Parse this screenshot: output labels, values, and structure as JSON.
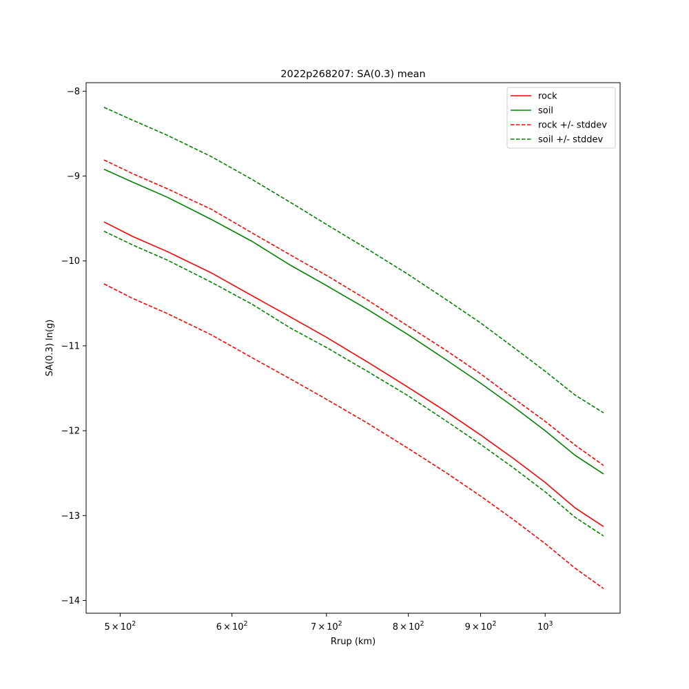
{
  "chart_data": {
    "type": "line",
    "title": "2022p268207: SA(0.3) mean",
    "xlabel": "Rrup (km)",
    "ylabel": "SA(0.3) ln(g)",
    "xscale": "log",
    "xlim": [
      473,
      1130
    ],
    "ylim": [
      -14.15,
      -7.9
    ],
    "grid": false,
    "legend_position": "top-right",
    "x_ticks": [
      {
        "value": 500,
        "mantissa": "5",
        "base": "10",
        "exp": "2"
      },
      {
        "value": 600,
        "mantissa": "6",
        "base": "10",
        "exp": "2"
      },
      {
        "value": 700,
        "mantissa": "7",
        "base": "10",
        "exp": "2"
      },
      {
        "value": 800,
        "mantissa": "8",
        "base": "10",
        "exp": "2"
      },
      {
        "value": 900,
        "mantissa": "9",
        "base": "10",
        "exp": "2"
      },
      {
        "value": 1000,
        "mantissa": "",
        "base": "10",
        "exp": "3"
      }
    ],
    "y_ticks": [
      {
        "value": -8,
        "label": "−8"
      },
      {
        "value": -9,
        "label": "−9"
      },
      {
        "value": -10,
        "label": "−10"
      },
      {
        "value": -11,
        "label": "−11"
      },
      {
        "value": -12,
        "label": "−12"
      },
      {
        "value": -13,
        "label": "−13"
      },
      {
        "value": -14,
        "label": "−14"
      }
    ],
    "x": [
      487,
      510,
      540,
      580,
      620,
      660,
      700,
      750,
      800,
      850,
      900,
      950,
      1000,
      1050,
      1100
    ],
    "series": [
      {
        "name": "rock",
        "color": "#ff0000",
        "dash": "solid",
        "values": [
          -9.54,
          -9.71,
          -9.89,
          -10.14,
          -10.41,
          -10.66,
          -10.9,
          -11.2,
          -11.49,
          -11.77,
          -12.05,
          -12.33,
          -12.61,
          -12.91,
          -13.13
        ]
      },
      {
        "name": "soil",
        "color": "#008000",
        "dash": "solid",
        "values": [
          -8.92,
          -9.07,
          -9.25,
          -9.51,
          -9.77,
          -10.05,
          -10.29,
          -10.58,
          -10.87,
          -11.16,
          -11.44,
          -11.72,
          -12.0,
          -12.29,
          -12.51
        ]
      },
      {
        "name": "rock +/- stddev",
        "color": "#ff0000",
        "dash": "dashed",
        "values": [
          -8.81,
          -8.97,
          -9.15,
          -9.39,
          -9.67,
          -9.93,
          -10.17,
          -10.47,
          -10.77,
          -11.05,
          -11.33,
          -11.62,
          -11.89,
          -12.17,
          -12.41
        ]
      },
      {
        "name": "",
        "color": "#ff0000",
        "dash": "dashed",
        "values": [
          -10.27,
          -10.44,
          -10.62,
          -10.87,
          -11.14,
          -11.39,
          -11.63,
          -11.92,
          -12.21,
          -12.49,
          -12.77,
          -13.05,
          -13.33,
          -13.62,
          -13.86
        ]
      },
      {
        "name": "soil +/- stddev",
        "color": "#008000",
        "dash": "dashed",
        "values": [
          -8.19,
          -8.34,
          -8.52,
          -8.77,
          -9.04,
          -9.31,
          -9.57,
          -9.87,
          -10.16,
          -10.45,
          -10.73,
          -11.02,
          -11.3,
          -11.58,
          -11.79
        ]
      },
      {
        "name": "",
        "color": "#008000",
        "dash": "dashed",
        "values": [
          -9.65,
          -9.81,
          -9.99,
          -10.25,
          -10.51,
          -10.79,
          -11.02,
          -11.31,
          -11.59,
          -11.88,
          -12.16,
          -12.44,
          -12.72,
          -13.02,
          -13.24
        ]
      }
    ]
  }
}
